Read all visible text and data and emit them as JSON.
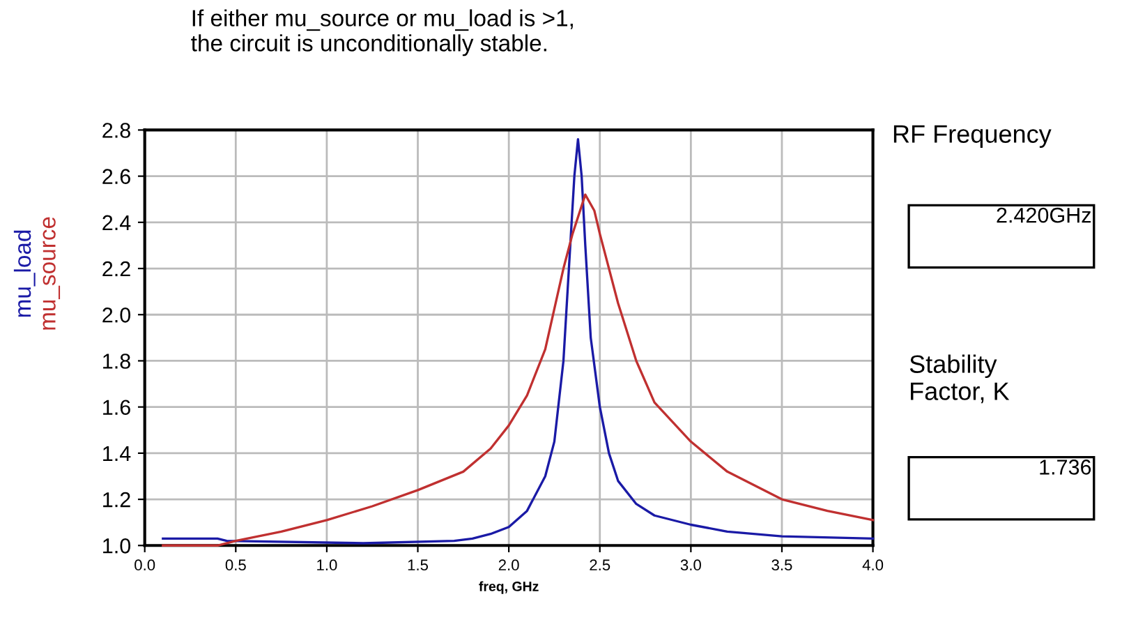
{
  "chart_data": {
    "type": "line",
    "title": "If either mu_source or mu_load is >1,\nthe circuit is unconditionally stable.",
    "xlabel": "freq, GHz",
    "series": [
      {
        "name": "mu_load",
        "color": "#1a1aa6",
        "x": [
          0.1,
          0.4,
          0.45,
          1.2,
          1.7,
          1.8,
          1.9,
          2.0,
          2.1,
          2.2,
          2.25,
          2.3,
          2.33,
          2.36,
          2.38,
          2.4,
          2.42,
          2.45,
          2.5,
          2.55,
          2.6,
          2.7,
          2.8,
          3.0,
          3.2,
          3.5,
          4.0
        ],
        "values": [
          1.03,
          1.03,
          1.02,
          1.01,
          1.02,
          1.03,
          1.05,
          1.08,
          1.15,
          1.3,
          1.45,
          1.8,
          2.2,
          2.6,
          2.76,
          2.6,
          2.3,
          1.9,
          1.6,
          1.4,
          1.28,
          1.18,
          1.13,
          1.09,
          1.06,
          1.04,
          1.03
        ]
      },
      {
        "name": "mu_source",
        "color": "#c03030",
        "x": [
          0.1,
          0.4,
          0.5,
          0.75,
          1.0,
          1.25,
          1.5,
          1.75,
          1.9,
          2.0,
          2.1,
          2.2,
          2.3,
          2.35,
          2.42,
          2.47,
          2.5,
          2.6,
          2.7,
          2.8,
          3.0,
          3.2,
          3.5,
          3.75,
          4.0
        ],
        "values": [
          1.0,
          1.0,
          1.02,
          1.06,
          1.11,
          1.17,
          1.24,
          1.32,
          1.42,
          1.52,
          1.65,
          1.85,
          2.2,
          2.35,
          2.52,
          2.45,
          2.35,
          2.05,
          1.8,
          1.62,
          1.45,
          1.32,
          1.2,
          1.15,
          1.11
        ]
      }
    ],
    "xlim": [
      0,
      4
    ],
    "xticks": [
      {
        "value": 0,
        "label": "0.0"
      },
      {
        "value": 0.5,
        "label": "0.5"
      },
      {
        "value": 1,
        "label": "1.0"
      },
      {
        "value": 1.5,
        "label": "1.5"
      },
      {
        "value": 2,
        "label": "2.0"
      },
      {
        "value": 2.5,
        "label": "2.5"
      },
      {
        "value": 3,
        "label": "3.0"
      },
      {
        "value": 3.5,
        "label": "3.5"
      },
      {
        "value": 4,
        "label": "4.0"
      }
    ],
    "ylim": [
      1.0,
      2.8
    ],
    "yticks": [
      {
        "value": 1.0,
        "label": "1.0"
      },
      {
        "value": 1.2,
        "label": "1.2"
      },
      {
        "value": 1.4,
        "label": "1.4"
      },
      {
        "value": 1.6,
        "label": "1.6"
      },
      {
        "value": 1.8,
        "label": "1.8"
      },
      {
        "value": 2.0,
        "label": "2.0"
      },
      {
        "value": 2.2,
        "label": "2.2"
      },
      {
        "value": 2.4,
        "label": "2.4"
      },
      {
        "value": 2.6,
        "label": "2.6"
      },
      {
        "value": 2.8,
        "label": "2.8"
      }
    ],
    "grid": true,
    "legend": "left",
    "annotations": [
      "RF Frequency",
      "2.420GHz",
      "Stability\nFactor, K",
      "1.736"
    ]
  }
}
